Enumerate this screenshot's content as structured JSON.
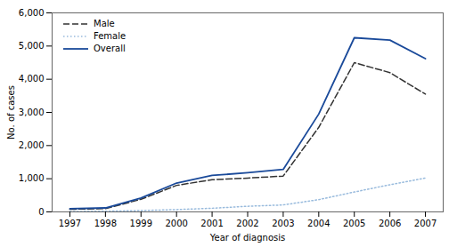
{
  "chart_data": {
    "type": "line",
    "x": [
      1997,
      1998,
      1999,
      2000,
      2001,
      2002,
      2003,
      2004,
      2005,
      2006,
      2007
    ],
    "series": [
      {
        "name": "Male",
        "color": "#333333",
        "line_style": "dashed",
        "values": [
          80,
          100,
          380,
          800,
          970,
          1020,
          1080,
          2550,
          4500,
          4200,
          3550
        ]
      },
      {
        "name": "Female",
        "color": "#99bbdd",
        "line_style": "dotted",
        "values": [
          15,
          20,
          40,
          70,
          110,
          170,
          210,
          370,
          600,
          820,
          1020
        ]
      },
      {
        "name": "Overall",
        "color": "#1a4a9a",
        "line_style": "solid",
        "values": [
          95,
          120,
          420,
          870,
          1100,
          1180,
          1280,
          2950,
          5250,
          5180,
          4620
        ]
      }
    ],
    "xlabel": "Year of diagnosis",
    "ylabel": "No. of cases",
    "xlim": [
      1996.5,
      2007.5
    ],
    "xticks": [
      1997,
      1998,
      1999,
      2000,
      2001,
      2002,
      2003,
      2004,
      2005,
      2006,
      2007
    ],
    "ylim": [
      0,
      6000
    ],
    "yticks": [
      0,
      {
        "value": 1000,
        "label": "1,000"
      },
      {
        "value": 2000,
        "label": "2,000"
      },
      {
        "value": 3000,
        "label": "3,000"
      },
      {
        "value": 4000,
        "label": "4,000"
      },
      {
        "value": 5000,
        "label": "5,000"
      },
      {
        "value": 6000,
        "label": "6,000"
      }
    ],
    "legend": "upper left",
    "grid": false
  }
}
